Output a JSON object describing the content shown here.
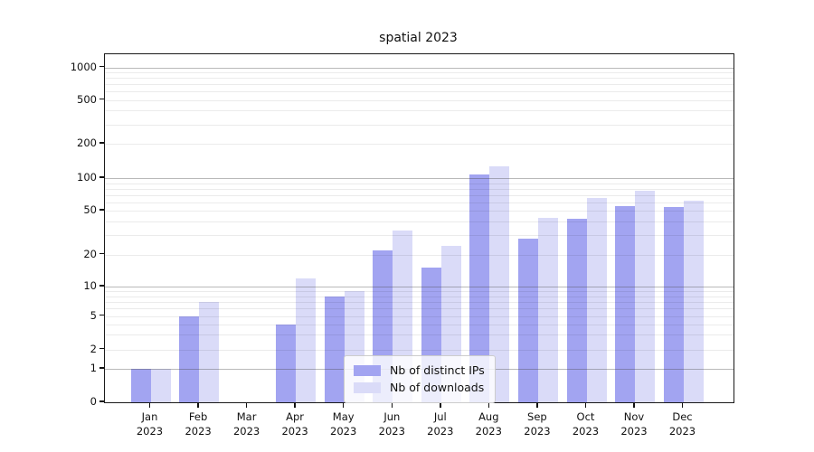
{
  "title": "spatial 2023",
  "legend": {
    "items": [
      {
        "label": "Nb of distinct IPs",
        "color": "#a2a4f1"
      },
      {
        "label": "Nb of downloads",
        "color": "#dadbf8"
      }
    ]
  },
  "y_axis": {
    "tick_labels": [
      "0",
      "1",
      "2",
      "5",
      "10",
      "20",
      "50",
      "100",
      "200",
      "500",
      "1000"
    ]
  },
  "x_axis": {
    "months": [
      "Jan",
      "Feb",
      "Mar",
      "Apr",
      "May",
      "Jun",
      "Jul",
      "Aug",
      "Sep",
      "Oct",
      "Nov",
      "Dec"
    ],
    "year": "2023"
  },
  "chart_data": {
    "type": "bar",
    "title": "spatial 2023",
    "categories": [
      "Jan 2023",
      "Feb 2023",
      "Mar 2023",
      "Apr 2023",
      "May 2023",
      "Jun 2023",
      "Jul 2023",
      "Aug 2023",
      "Sep 2023",
      "Oct 2023",
      "Nov 2023",
      "Dec 2023"
    ],
    "series": [
      {
        "key": "distinct-ips",
        "name": "Nb of distinct IPs",
        "color": "#a2a4f1",
        "values": [
          1,
          5,
          0,
          4,
          8,
          22,
          15,
          108,
          28,
          42,
          55,
          54
        ]
      },
      {
        "key": "downloads",
        "name": "Nb of downloads",
        "color": "#dadbf8",
        "values": [
          1,
          7,
          0,
          12,
          9,
          33,
          24,
          128,
          43,
          66,
          76,
          62
        ]
      }
    ],
    "xlabel": "",
    "ylabel": "",
    "y_scale": "symlog",
    "y_ticks": [
      0,
      1,
      2,
      5,
      10,
      20,
      50,
      100,
      200,
      500,
      1000
    ],
    "ylim": [
      0,
      1300
    ],
    "grid": true,
    "grid_over_bars": true,
    "legend_position": "lower center"
  }
}
